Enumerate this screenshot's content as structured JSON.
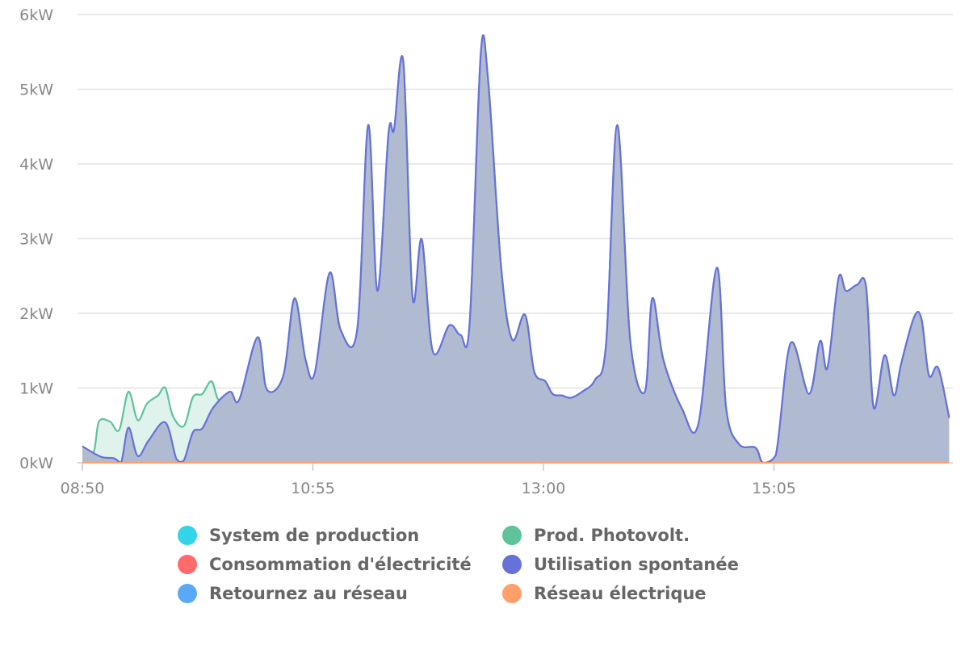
{
  "chart_data": {
    "type": "area",
    "title": "",
    "xlabel": "",
    "ylabel": "",
    "x_ticks": [
      "08:50",
      "10:55",
      "13:00",
      "15:05"
    ],
    "y_ticks": [
      "0kW",
      "1kW",
      "2kW",
      "3kW",
      "4kW",
      "5kW",
      "6kW"
    ],
    "ylim": [
      0,
      6
    ],
    "xlim": [
      "08:50",
      "16:40"
    ],
    "grid": true,
    "legend_placement": "bottom",
    "series": [
      {
        "name": "System de production",
        "color": "#33d3ea",
        "points": []
      },
      {
        "name": "Prod. Photovolt.",
        "color": "#5fc29b",
        "points": [
          [
            "08:50",
            0.22
          ],
          [
            "08:56",
            0.14
          ],
          [
            "08:59",
            0.55
          ],
          [
            "09:05",
            0.55
          ],
          [
            "09:10",
            0.44
          ],
          [
            "09:15",
            0.95
          ],
          [
            "09:20",
            0.57
          ],
          [
            "09:25",
            0.79
          ],
          [
            "09:31",
            0.9
          ],
          [
            "09:35",
            1.0
          ],
          [
            "09:39",
            0.63
          ],
          [
            "09:45",
            0.49
          ],
          [
            "09:50",
            0.88
          ],
          [
            "09:55",
            0.92
          ],
          [
            "10:00",
            1.09
          ],
          [
            "10:04",
            0.84
          ],
          [
            "10:10",
            0.95
          ],
          [
            "10:15",
            0.84
          ],
          [
            "10:25",
            1.68
          ],
          [
            "10:30",
            0.98
          ],
          [
            "10:39",
            1.17
          ],
          [
            "10:45",
            2.2
          ],
          [
            "10:51",
            1.38
          ],
          [
            "10:56",
            1.2
          ],
          [
            "11:04",
            2.54
          ],
          [
            "11:10",
            1.78
          ],
          [
            "11:19",
            1.78
          ],
          [
            "11:25",
            4.52
          ],
          [
            "11:30",
            2.3
          ],
          [
            "11:36",
            4.41
          ],
          [
            "11:39",
            4.46
          ],
          [
            "11:44",
            5.37
          ],
          [
            "11:49",
            2.22
          ],
          [
            "11:54",
            2.99
          ],
          [
            "12:00",
            1.49
          ],
          [
            "12:09",
            1.84
          ],
          [
            "12:15",
            1.71
          ],
          [
            "12:20",
            1.87
          ],
          [
            "12:26",
            5.47
          ],
          [
            "12:30",
            5.12
          ],
          [
            "12:37",
            2.63
          ],
          [
            "12:43",
            1.65
          ],
          [
            "12:50",
            1.98
          ],
          [
            "12:55",
            1.22
          ],
          [
            "13:01",
            1.09
          ],
          [
            "13:05",
            0.92
          ],
          [
            "13:10",
            0.9
          ],
          [
            "13:15",
            0.87
          ],
          [
            "13:21",
            0.95
          ],
          [
            "13:28",
            1.11
          ],
          [
            "13:34",
            1.6
          ],
          [
            "13:40",
            4.52
          ],
          [
            "13:47",
            1.65
          ],
          [
            "13:55",
            0.95
          ],
          [
            "13:59",
            2.2
          ],
          [
            "14:05",
            1.38
          ],
          [
            "14:15",
            0.73
          ],
          [
            "14:24",
            0.52
          ],
          [
            "14:34",
            2.61
          ],
          [
            "14:39",
            0.74
          ],
          [
            "14:46",
            0.25
          ],
          [
            "14:55",
            0.2
          ],
          [
            "14:59",
            0.0
          ],
          [
            "15:06",
            0.1
          ],
          [
            "15:14",
            1.6
          ],
          [
            "15:24",
            0.92
          ],
          [
            "15:30",
            1.63
          ],
          [
            "15:34",
            1.27
          ],
          [
            "15:40",
            2.47
          ],
          [
            "15:44",
            2.3
          ],
          [
            "15:50",
            2.38
          ],
          [
            "15:55",
            2.34
          ],
          [
            "15:59",
            0.74
          ],
          [
            "16:05",
            1.44
          ],
          [
            "16:10",
            0.9
          ],
          [
            "16:14",
            1.33
          ],
          [
            "16:21",
            1.95
          ],
          [
            "16:25",
            1.92
          ],
          [
            "16:29",
            1.17
          ],
          [
            "16:34",
            1.27
          ],
          [
            "16:40",
            0.6
          ]
        ]
      },
      {
        "name": "Consommation d'électricité",
        "color": "#ff6b6b",
        "points": []
      },
      {
        "name": "Utilisation spontanée",
        "color": "#6671d9",
        "points": [
          [
            "08:50",
            0.22
          ],
          [
            "09:00",
            0.08
          ],
          [
            "09:07",
            0.06
          ],
          [
            "09:11",
            0.0
          ],
          [
            "09:15",
            0.47
          ],
          [
            "09:20",
            0.09
          ],
          [
            "09:26",
            0.3
          ],
          [
            "09:35",
            0.54
          ],
          [
            "09:41",
            0.05
          ],
          [
            "09:45",
            0.03
          ],
          [
            "09:50",
            0.41
          ],
          [
            "09:55",
            0.46
          ],
          [
            "10:01",
            0.74
          ],
          [
            "10:10",
            0.95
          ],
          [
            "10:15",
            0.84
          ],
          [
            "10:25",
            1.68
          ],
          [
            "10:30",
            0.98
          ],
          [
            "10:39",
            1.17
          ],
          [
            "10:45",
            2.2
          ],
          [
            "10:51",
            1.38
          ],
          [
            "10:56",
            1.2
          ],
          [
            "11:04",
            2.54
          ],
          [
            "11:10",
            1.78
          ],
          [
            "11:19",
            1.78
          ],
          [
            "11:25",
            4.52
          ],
          [
            "11:30",
            2.3
          ],
          [
            "11:36",
            4.41
          ],
          [
            "11:39",
            4.46
          ],
          [
            "11:44",
            5.37
          ],
          [
            "11:49",
            2.22
          ],
          [
            "11:54",
            2.99
          ],
          [
            "12:00",
            1.49
          ],
          [
            "12:09",
            1.84
          ],
          [
            "12:15",
            1.71
          ],
          [
            "12:20",
            1.87
          ],
          [
            "12:26",
            5.47
          ],
          [
            "12:30",
            5.12
          ],
          [
            "12:37",
            2.63
          ],
          [
            "12:43",
            1.65
          ],
          [
            "12:50",
            1.98
          ],
          [
            "12:55",
            1.22
          ],
          [
            "13:01",
            1.09
          ],
          [
            "13:05",
            0.92
          ],
          [
            "13:10",
            0.9
          ],
          [
            "13:15",
            0.87
          ],
          [
            "13:21",
            0.95
          ],
          [
            "13:28",
            1.11
          ],
          [
            "13:34",
            1.6
          ],
          [
            "13:40",
            4.52
          ],
          [
            "13:47",
            1.65
          ],
          [
            "13:55",
            0.95
          ],
          [
            "13:59",
            2.2
          ],
          [
            "14:05",
            1.38
          ],
          [
            "14:15",
            0.73
          ],
          [
            "14:24",
            0.52
          ],
          [
            "14:34",
            2.61
          ],
          [
            "14:39",
            0.74
          ],
          [
            "14:46",
            0.25
          ],
          [
            "14:55",
            0.2
          ],
          [
            "14:59",
            0.0
          ],
          [
            "15:06",
            0.1
          ],
          [
            "15:14",
            1.6
          ],
          [
            "15:24",
            0.92
          ],
          [
            "15:30",
            1.63
          ],
          [
            "15:34",
            1.27
          ],
          [
            "15:40",
            2.47
          ],
          [
            "15:44",
            2.3
          ],
          [
            "15:50",
            2.38
          ],
          [
            "15:55",
            2.34
          ],
          [
            "15:59",
            0.74
          ],
          [
            "16:05",
            1.44
          ],
          [
            "16:10",
            0.9
          ],
          [
            "16:14",
            1.33
          ],
          [
            "16:21",
            1.95
          ],
          [
            "16:25",
            1.92
          ],
          [
            "16:29",
            1.17
          ],
          [
            "16:34",
            1.27
          ],
          [
            "16:40",
            0.6
          ]
        ]
      },
      {
        "name": "Retournez au réseau",
        "color": "#5aa9f7",
        "points": []
      },
      {
        "name": "Réseau électrique",
        "color": "#ff9f6b",
        "points": [
          [
            "08:50",
            0
          ],
          [
            "16:40",
            0
          ]
        ]
      }
    ]
  }
}
